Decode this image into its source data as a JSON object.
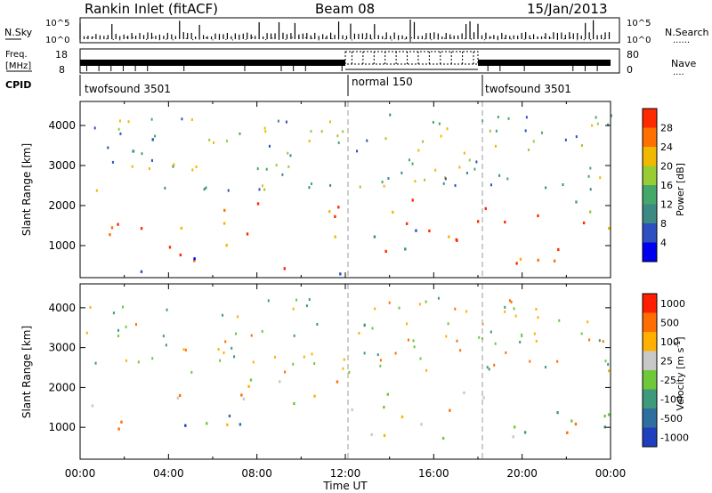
{
  "header": {
    "title": "Rankin Inlet (fitACF)",
    "beam": "Beam 08",
    "date": "15/Jan/2013"
  },
  "top_panels": {
    "nsky_label": "N.Sky",
    "nsearch_label": "N.Search",
    "nsearch_dots": "......",
    "nsky_ticks": [
      "10^5",
      "10^0"
    ],
    "nsearch_ticks": [
      "10^5",
      "10^0"
    ],
    "freq_label_1": "Freq.",
    "freq_label_2": "[MHz]",
    "freq_ticks": [
      "18",
      "8"
    ],
    "nave_label": "Nave",
    "nave_dots": "....",
    "nave_ticks": [
      "80",
      "0"
    ],
    "cpid_label": "CPID",
    "cpid_segments": [
      {
        "name": "twofsound 3501",
        "start_hour": 0,
        "end_hour": 12
      },
      {
        "name": "normal 150",
        "start_hour": 12,
        "end_hour": 18
      },
      {
        "name": "twofsound 3501",
        "start_hour": 18,
        "end_hour": 24
      }
    ]
  },
  "chart_data": [
    {
      "type": "heatmap",
      "panel": "power",
      "ylabel": "Slant Range [km]",
      "xlim": [
        0,
        24
      ],
      "ylim": [
        200,
        4600
      ],
      "yticks": [
        1000,
        2000,
        3000,
        4000
      ],
      "xtick_labels": [
        "00:00",
        "04:00",
        "08:00",
        "12:00",
        "16:00",
        "20:00",
        "00:00"
      ],
      "colorbar": {
        "label": "Power [dB]",
        "ticks": [
          "4",
          "8",
          "12",
          "16",
          "20",
          "24",
          "28"
        ],
        "colors": [
          "#0000ee",
          "#2d4fc0",
          "#3d8a85",
          "#44a86a",
          "#99cc33",
          "#f0b800",
          "#ff7000",
          "#ff2a00"
        ]
      },
      "regions": [
        {
          "t0": 0.0,
          "t1": 6.0,
          "r0": 700,
          "r1": 1700,
          "level": "high"
        },
        {
          "t0": 6.0,
          "t1": 12.0,
          "r0": 900,
          "r1": 2200,
          "level": "high"
        },
        {
          "t0": 0.0,
          "t1": 12.0,
          "r0": 250,
          "r1": 650,
          "level": "mixed"
        },
        {
          "t0": 1.0,
          "t1": 4.5,
          "r0": 3300,
          "r1": 3900,
          "level": "low"
        },
        {
          "t0": 12.0,
          "t1": 18.0,
          "r0": 600,
          "r1": 1600,
          "level": "mixed"
        },
        {
          "t0": 14.0,
          "t1": 18.0,
          "r0": 1000,
          "r1": 2200,
          "level": "high"
        },
        {
          "t0": 18.0,
          "t1": 24.0,
          "r0": 500,
          "r1": 2000,
          "level": "high"
        },
        {
          "t0": 21.0,
          "t1": 24.0,
          "r0": 1800,
          "r1": 2400,
          "level": "mid"
        }
      ]
    },
    {
      "type": "heatmap",
      "panel": "velocity",
      "ylabel": "Slant Range [km]",
      "xlabel": "Time UT",
      "xlim": [
        0,
        24
      ],
      "ylim": [
        200,
        4600
      ],
      "yticks": [
        1000,
        2000,
        3000,
        4000
      ],
      "xtick_labels": [
        "00:00",
        "04:00",
        "08:00",
        "12:00",
        "16:00",
        "20:00",
        "00:00"
      ],
      "colorbar": {
        "label": "Velocity [m s",
        "label_sup": "-1",
        "label_end": "]",
        "ticks": [
          "1000",
          "500",
          "100",
          "25",
          "-25",
          "-100",
          "-500",
          "-1000"
        ],
        "colors": [
          "#1f3fbf",
          "#2f6fa0",
          "#3d9a7a",
          "#6fc83a",
          "#c8c8c8",
          "#ffb000",
          "#ff6e00",
          "#ff1e00"
        ]
      },
      "regions": [
        {
          "t0": 0.0,
          "t1": 5.0,
          "r0": 900,
          "r1": 1800,
          "level": "away"
        },
        {
          "t0": 4.0,
          "t1": 8.0,
          "r0": 400,
          "r1": 1300,
          "level": "toward"
        },
        {
          "t0": 6.0,
          "t1": 12.0,
          "r0": 900,
          "r1": 2200,
          "level": "away"
        },
        {
          "t0": 12.0,
          "t1": 18.0,
          "r0": 500,
          "r1": 2000,
          "level": "away"
        },
        {
          "t0": 18.0,
          "t1": 24.0,
          "r0": 600,
          "r1": 2200,
          "level": "mixed"
        }
      ]
    }
  ]
}
